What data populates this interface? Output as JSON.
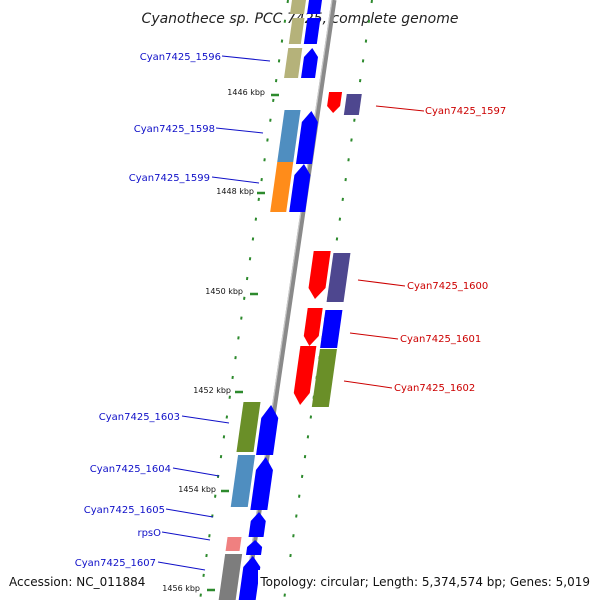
{
  "title": "Cyanothece sp. PCC 7425, complete genome",
  "footer": {
    "accession": "Accession: NC_011884",
    "summary": "Topology: circular; Length: 5,374,574 bp; Genes: 5,019"
  },
  "kbp_ticks": [
    "1446 kbp",
    "1448 kbp",
    "1450 kbp",
    "1452 kbp",
    "1454 kbp",
    "1456 kbp"
  ],
  "genes_minus": [
    "Cyan7425_1596",
    "Cyan7425_1598",
    "Cyan7425_1599",
    "Cyan7425_1603",
    "Cyan7425_1604",
    "Cyan7425_1605",
    "rpsO",
    "Cyan7425_1607"
  ],
  "genes_plus": [
    "Cyan7425_1597",
    "Cyan7425_1600",
    "Cyan7425_1601",
    "Cyan7425_1602"
  ],
  "colors": {
    "minus_label": "#1010c8",
    "plus_label": "#cc0000",
    "backbone": "#8a8a8a",
    "tick_dash": "#2d8a2d",
    "strand_blue": "#0000ff",
    "strand_red": "#ff0000",
    "khaki": "#b5b27a",
    "steelblue": "#4f8ec0",
    "orange": "#ff8c1a",
    "olive": "#6a8f28",
    "slateblue": "#4e478f",
    "pink": "#f08080",
    "grey": "#7d7d7d"
  }
}
